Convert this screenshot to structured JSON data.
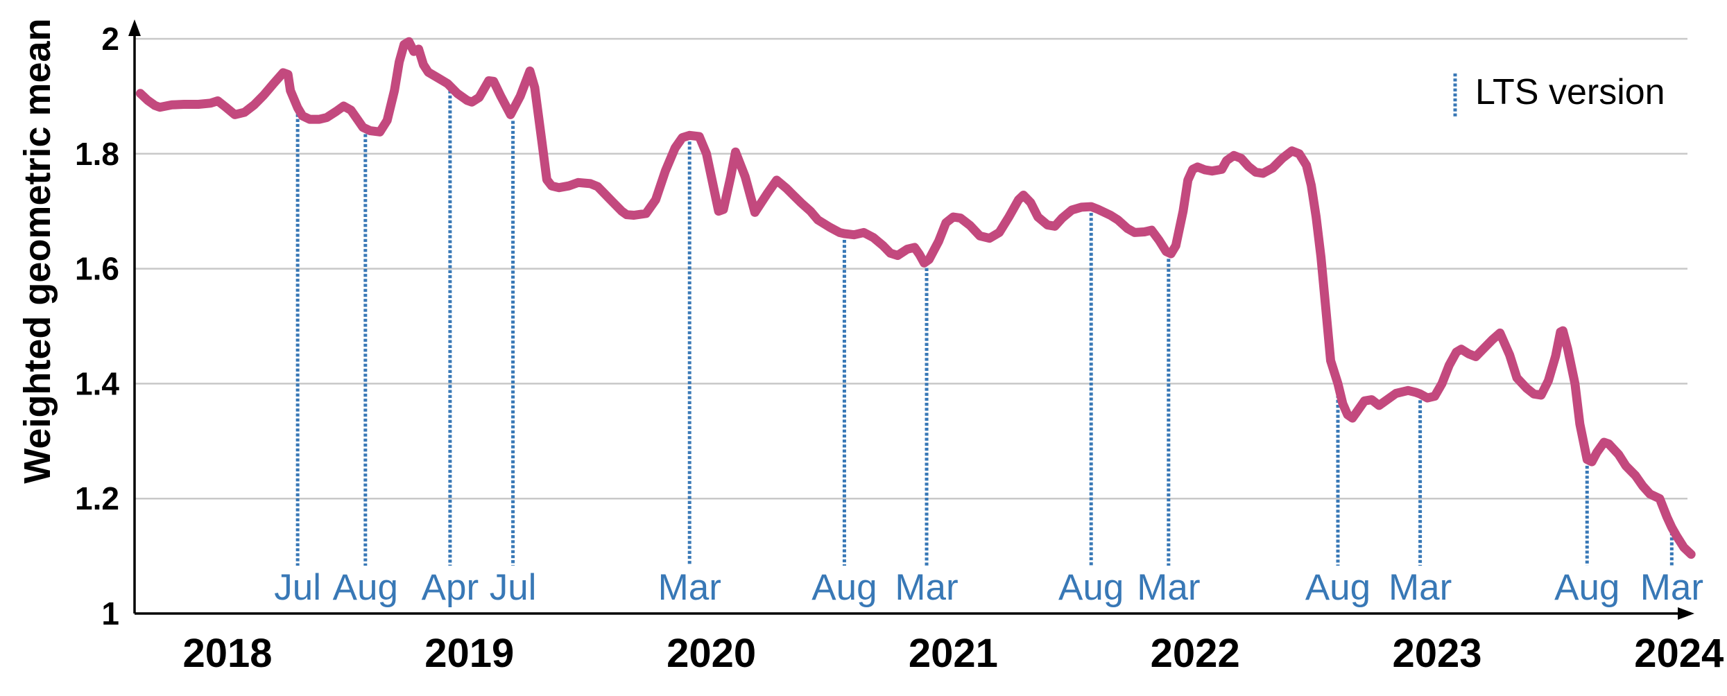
{
  "figure": {
    "background": "#ffffff"
  },
  "y_axis": {
    "title": "Weighted geometric mean",
    "ticks": [
      {
        "label": "2",
        "value": 2.0
      },
      {
        "label": "1.8",
        "value": 1.8
      },
      {
        "label": "1.6",
        "value": 1.6
      },
      {
        "label": "1.4",
        "value": 1.4
      },
      {
        "label": "1.2",
        "value": 1.2
      },
      {
        "label": "1",
        "value": 1.0
      }
    ]
  },
  "x_axis": {
    "ticks": [
      {
        "label": "2018",
        "value": 2018
      },
      {
        "label": "2019",
        "value": 2019
      },
      {
        "label": "2020",
        "value": 2020
      },
      {
        "label": "2021",
        "value": 2021
      },
      {
        "label": "2022",
        "value": 2022
      },
      {
        "label": "2023",
        "value": 2023
      },
      {
        "label": "2024",
        "value": 2024
      }
    ]
  },
  "legend": {
    "label": "LTS version"
  },
  "colors": {
    "line": "#c3497e",
    "marker_blue": "#3878b6",
    "grid": "#c8c8c8",
    "axis": "#000000",
    "text": "#000000"
  },
  "chart_data": {
    "type": "line",
    "title": "",
    "xlabel": "",
    "ylabel": "Weighted geometric mean",
    "ylim": [
      1,
      2
    ],
    "xlim": [
      2017.6,
      2024.1
    ],
    "grid": "horizontal",
    "legend_position": "top-right",
    "series": [
      {
        "name": "Weighted geometric mean",
        "points": [
          [
            2017.64,
            1.905
          ],
          [
            2017.67,
            1.893
          ],
          [
            2017.7,
            1.884
          ],
          [
            2017.72,
            1.881
          ],
          [
            2017.77,
            1.885
          ],
          [
            2017.82,
            1.886
          ],
          [
            2017.88,
            1.886
          ],
          [
            2017.93,
            1.888
          ],
          [
            2017.96,
            1.892
          ],
          [
            2017.99,
            1.882
          ],
          [
            2018.03,
            1.868
          ],
          [
            2018.07,
            1.872
          ],
          [
            2018.11,
            1.885
          ],
          [
            2018.15,
            1.902
          ],
          [
            2018.19,
            1.922
          ],
          [
            2018.23,
            1.941
          ],
          [
            2018.25,
            1.938
          ],
          [
            2018.26,
            1.91
          ],
          [
            2018.29,
            1.88
          ],
          [
            2018.31,
            1.866
          ],
          [
            2018.34,
            1.86
          ],
          [
            2018.38,
            1.86
          ],
          [
            2018.41,
            1.863
          ],
          [
            2018.45,
            1.874
          ],
          [
            2018.48,
            1.883
          ],
          [
            2018.51,
            1.876
          ],
          [
            2018.54,
            1.858
          ],
          [
            2018.56,
            1.846
          ],
          [
            2018.59,
            1.84
          ],
          [
            2018.63,
            1.838
          ],
          [
            2018.66,
            1.858
          ],
          [
            2018.69,
            1.91
          ],
          [
            2018.71,
            1.96
          ],
          [
            2018.73,
            1.99
          ],
          [
            2018.75,
            1.995
          ],
          [
            2018.77,
            1.978
          ],
          [
            2018.79,
            1.982
          ],
          [
            2018.81,
            1.955
          ],
          [
            2018.83,
            1.942
          ],
          [
            2018.87,
            1.932
          ],
          [
            2018.91,
            1.922
          ],
          [
            2018.95,
            1.905
          ],
          [
            2018.99,
            1.893
          ],
          [
            2019.01,
            1.89
          ],
          [
            2019.04,
            1.898
          ],
          [
            2019.08,
            1.927
          ],
          [
            2019.1,
            1.926
          ],
          [
            2019.13,
            1.9
          ],
          [
            2019.17,
            1.868
          ],
          [
            2019.21,
            1.9
          ],
          [
            2019.25,
            1.944
          ],
          [
            2019.27,
            1.915
          ],
          [
            2019.3,
            1.82
          ],
          [
            2019.32,
            1.755
          ],
          [
            2019.34,
            1.744
          ],
          [
            2019.37,
            1.741
          ],
          [
            2019.41,
            1.744
          ],
          [
            2019.45,
            1.75
          ],
          [
            2019.5,
            1.748
          ],
          [
            2019.53,
            1.743
          ],
          [
            2019.56,
            1.73
          ],
          [
            2019.59,
            1.717
          ],
          [
            2019.63,
            1.7
          ],
          [
            2019.65,
            1.694
          ],
          [
            2019.68,
            1.693
          ],
          [
            2019.73,
            1.696
          ],
          [
            2019.77,
            1.72
          ],
          [
            2019.81,
            1.77
          ],
          [
            2019.85,
            1.81
          ],
          [
            2019.88,
            1.828
          ],
          [
            2019.91,
            1.832
          ],
          [
            2019.95,
            1.83
          ],
          [
            2019.98,
            1.8
          ],
          [
            2020.02,
            1.72
          ],
          [
            2020.03,
            1.7
          ],
          [
            2020.05,
            1.703
          ],
          [
            2020.08,
            1.76
          ],
          [
            2020.1,
            1.803
          ],
          [
            2020.14,
            1.76
          ],
          [
            2020.18,
            1.698
          ],
          [
            2020.23,
            1.73
          ],
          [
            2020.27,
            1.754
          ],
          [
            2020.31,
            1.74
          ],
          [
            2020.37,
            1.715
          ],
          [
            2020.41,
            1.7
          ],
          [
            2020.44,
            1.685
          ],
          [
            2020.49,
            1.672
          ],
          [
            2020.53,
            1.663
          ],
          [
            2020.55,
            1.661
          ],
          [
            2020.59,
            1.659
          ],
          [
            2020.63,
            1.663
          ],
          [
            2020.67,
            1.654
          ],
          [
            2020.71,
            1.64
          ],
          [
            2020.74,
            1.627
          ],
          [
            2020.77,
            1.623
          ],
          [
            2020.81,
            1.634
          ],
          [
            2020.84,
            1.637
          ],
          [
            2020.86,
            1.625
          ],
          [
            2020.88,
            1.61
          ],
          [
            2020.9,
            1.616
          ],
          [
            2020.94,
            1.648
          ],
          [
            2020.97,
            1.68
          ],
          [
            2021.0,
            1.69
          ],
          [
            2021.03,
            1.688
          ],
          [
            2021.07,
            1.675
          ],
          [
            2021.11,
            1.657
          ],
          [
            2021.15,
            1.653
          ],
          [
            2021.19,
            1.663
          ],
          [
            2021.23,
            1.69
          ],
          [
            2021.27,
            1.72
          ],
          [
            2021.29,
            1.728
          ],
          [
            2021.32,
            1.715
          ],
          [
            2021.35,
            1.69
          ],
          [
            2021.39,
            1.676
          ],
          [
            2021.42,
            1.674
          ],
          [
            2021.45,
            1.688
          ],
          [
            2021.49,
            1.702
          ],
          [
            2021.53,
            1.707
          ],
          [
            2021.57,
            1.708
          ],
          [
            2021.6,
            1.703
          ],
          [
            2021.65,
            1.693
          ],
          [
            2021.68,
            1.685
          ],
          [
            2021.72,
            1.67
          ],
          [
            2021.75,
            1.663
          ],
          [
            2021.79,
            1.664
          ],
          [
            2021.82,
            1.667
          ],
          [
            2021.85,
            1.65
          ],
          [
            2021.88,
            1.63
          ],
          [
            2021.9,
            1.626
          ],
          [
            2021.92,
            1.64
          ],
          [
            2021.95,
            1.7
          ],
          [
            2021.97,
            1.754
          ],
          [
            2021.99,
            1.773
          ],
          [
            2022.01,
            1.777
          ],
          [
            2022.04,
            1.772
          ],
          [
            2022.07,
            1.77
          ],
          [
            2022.11,
            1.773
          ],
          [
            2022.13,
            1.788
          ],
          [
            2022.16,
            1.797
          ],
          [
            2022.19,
            1.792
          ],
          [
            2022.22,
            1.778
          ],
          [
            2022.25,
            1.768
          ],
          [
            2022.28,
            1.766
          ],
          [
            2022.32,
            1.775
          ],
          [
            2022.36,
            1.792
          ],
          [
            2022.4,
            1.805
          ],
          [
            2022.43,
            1.8
          ],
          [
            2022.46,
            1.78
          ],
          [
            2022.48,
            1.745
          ],
          [
            2022.5,
            1.69
          ],
          [
            2022.52,
            1.62
          ],
          [
            2022.54,
            1.53
          ],
          [
            2022.56,
            1.44
          ],
          [
            2022.59,
            1.4
          ],
          [
            2022.61,
            1.365
          ],
          [
            2022.63,
            1.346
          ],
          [
            2022.65,
            1.34
          ],
          [
            2022.67,
            1.352
          ],
          [
            2022.7,
            1.37
          ],
          [
            2022.73,
            1.372
          ],
          [
            2022.76,
            1.362
          ],
          [
            2022.78,
            1.368
          ],
          [
            2022.83,
            1.383
          ],
          [
            2022.88,
            1.388
          ],
          [
            2022.91,
            1.385
          ],
          [
            2022.93,
            1.382
          ],
          [
            2022.96,
            1.375
          ],
          [
            2022.99,
            1.378
          ],
          [
            2023.02,
            1.4
          ],
          [
            2023.05,
            1.432
          ],
          [
            2023.08,
            1.455
          ],
          [
            2023.1,
            1.46
          ],
          [
            2023.13,
            1.452
          ],
          [
            2023.16,
            1.447
          ],
          [
            2023.19,
            1.46
          ],
          [
            2023.23,
            1.477
          ],
          [
            2023.26,
            1.488
          ],
          [
            2023.3,
            1.45
          ],
          [
            2023.33,
            1.41
          ],
          [
            2023.37,
            1.392
          ],
          [
            2023.4,
            1.382
          ],
          [
            2023.43,
            1.38
          ],
          [
            2023.46,
            1.405
          ],
          [
            2023.49,
            1.448
          ],
          [
            2023.51,
            1.49
          ],
          [
            2023.52,
            1.492
          ],
          [
            2023.54,
            1.46
          ],
          [
            2023.57,
            1.4
          ],
          [
            2023.59,
            1.33
          ],
          [
            2023.62,
            1.268
          ],
          [
            2023.64,
            1.264
          ],
          [
            2023.66,
            1.28
          ],
          [
            2023.69,
            1.298
          ],
          [
            2023.71,
            1.295
          ],
          [
            2023.75,
            1.277
          ],
          [
            2023.78,
            1.257
          ],
          [
            2023.82,
            1.24
          ],
          [
            2023.85,
            1.222
          ],
          [
            2023.88,
            1.208
          ],
          [
            2023.92,
            1.2
          ],
          [
            2023.95,
            1.168
          ],
          [
            2023.97,
            1.15
          ],
          [
            2023.99,
            1.135
          ],
          [
            2024.02,
            1.115
          ],
          [
            2024.05,
            1.103
          ]
        ]
      }
    ],
    "lts_markers": [
      {
        "label": "Jul",
        "x": 2018.29,
        "value": 1.88
      },
      {
        "label": "Aug",
        "x": 2018.57,
        "value": 1.845
      },
      {
        "label": "Apr",
        "x": 2018.92,
        "value": 1.921
      },
      {
        "label": "Jul",
        "x": 2019.18,
        "value": 1.868
      },
      {
        "label": "Mar",
        "x": 2019.91,
        "value": 1.832
      },
      {
        "label": "Aug",
        "x": 2020.55,
        "value": 1.661
      },
      {
        "label": "Mar",
        "x": 2020.89,
        "value": 1.612
      },
      {
        "label": "Aug",
        "x": 2021.57,
        "value": 1.708
      },
      {
        "label": "Mar",
        "x": 2021.89,
        "value": 1.628
      },
      {
        "label": "Aug",
        "x": 2022.59,
        "value": 1.4
      },
      {
        "label": "Mar",
        "x": 2022.93,
        "value": 1.382
      },
      {
        "label": "Aug",
        "x": 2023.62,
        "value": 1.268
      },
      {
        "label": "Mar",
        "x": 2023.97,
        "value": 1.152
      }
    ]
  }
}
